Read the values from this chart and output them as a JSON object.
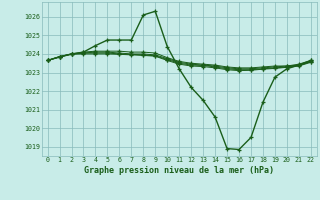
{
  "bg_color": "#c8ece8",
  "grid_color": "#88bbbb",
  "line_color": "#1a5e1a",
  "marker_color": "#1a5e1a",
  "xlabel": "Graphe pression niveau de la mer (hPa)",
  "xlabel_color": "#1a5e1a",
  "ylim": [
    1018.5,
    1026.8
  ],
  "xlim": [
    -0.5,
    22.5
  ],
  "yticks": [
    1019,
    1020,
    1021,
    1022,
    1023,
    1024,
    1025,
    1026
  ],
  "xticks": [
    0,
    1,
    2,
    3,
    4,
    5,
    6,
    7,
    8,
    9,
    10,
    11,
    12,
    13,
    14,
    15,
    16,
    17,
    18,
    19,
    20,
    21,
    22
  ],
  "series": [
    [
      1023.65,
      1023.85,
      1024.0,
      1024.1,
      1024.45,
      1024.75,
      1024.75,
      1024.75,
      1026.1,
      1026.3,
      1024.4,
      1023.2,
      1022.2,
      1021.5,
      1020.6,
      1018.9,
      1018.85,
      1019.5,
      1021.4,
      1022.75,
      1023.2,
      1023.4,
      1023.65
    ],
    [
      1023.65,
      1023.85,
      1024.0,
      1024.1,
      1024.15,
      1024.15,
      1024.15,
      1024.1,
      1024.1,
      1024.05,
      1023.8,
      1023.6,
      1023.5,
      1023.45,
      1023.4,
      1023.3,
      1023.25,
      1023.25,
      1023.3,
      1023.35,
      1023.35,
      1023.45,
      1023.65
    ],
    [
      1023.65,
      1023.85,
      1024.0,
      1024.05,
      1024.1,
      1024.1,
      1024.05,
      1024.0,
      1024.0,
      1023.95,
      1023.75,
      1023.55,
      1023.45,
      1023.4,
      1023.35,
      1023.25,
      1023.2,
      1023.2,
      1023.25,
      1023.3,
      1023.35,
      1023.4,
      1023.6
    ],
    [
      1023.65,
      1023.85,
      1024.0,
      1024.05,
      1024.05,
      1024.05,
      1024.0,
      1023.98,
      1023.95,
      1023.9,
      1023.7,
      1023.5,
      1023.4,
      1023.38,
      1023.3,
      1023.2,
      1023.15,
      1023.15,
      1023.2,
      1023.25,
      1023.3,
      1023.38,
      1023.58
    ],
    [
      1023.65,
      1023.82,
      1023.98,
      1024.0,
      1024.0,
      1024.0,
      1023.98,
      1023.95,
      1023.92,
      1023.88,
      1023.65,
      1023.45,
      1023.35,
      1023.32,
      1023.25,
      1023.15,
      1023.1,
      1023.12,
      1023.18,
      1023.22,
      1023.28,
      1023.35,
      1023.55
    ]
  ]
}
